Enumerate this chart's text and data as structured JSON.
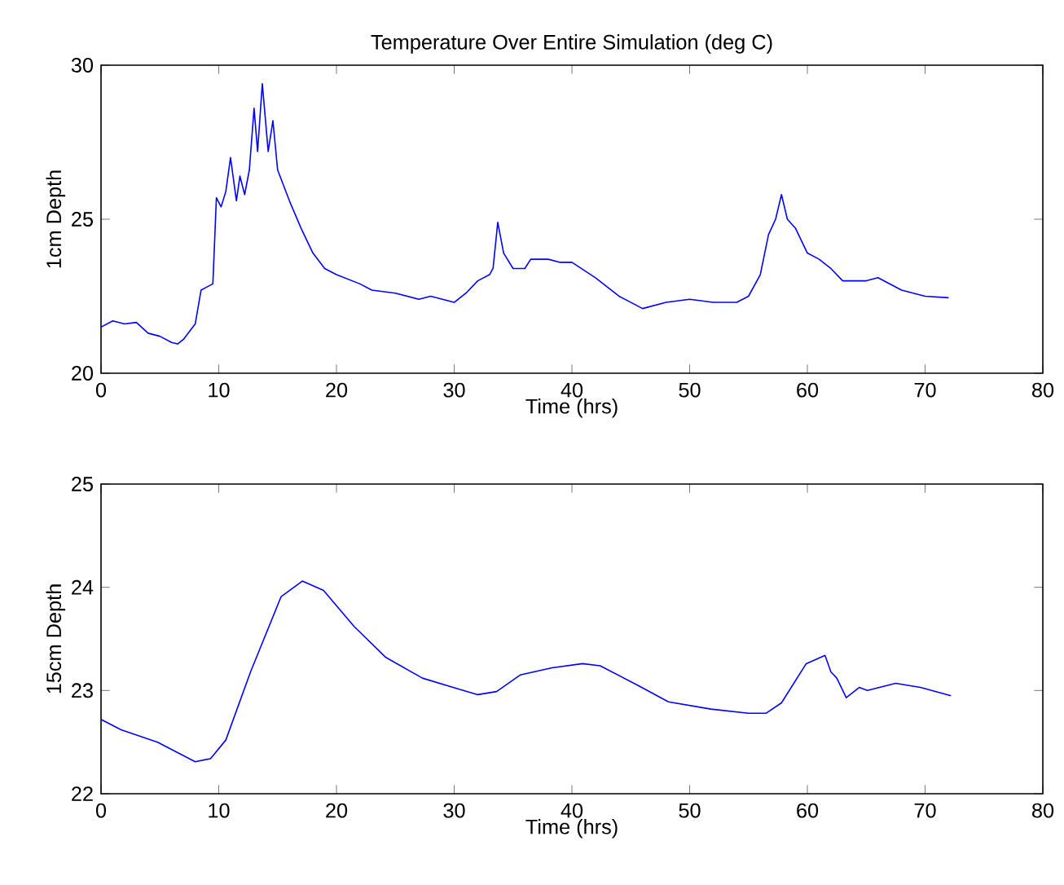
{
  "chart_data": [
    {
      "type": "line",
      "title": "Temperature Over Entire Simulation (deg C)",
      "xlabel": "Time (hrs)",
      "ylabel": "1cm Depth",
      "color": "#0000ff",
      "x": [
        0,
        1,
        2,
        3,
        4,
        5,
        6,
        6.5,
        7,
        8,
        8.5,
        9,
        9.5,
        9.8,
        10.2,
        10.6,
        11,
        11.5,
        11.8,
        12.2,
        12.6,
        13,
        13.3,
        13.7,
        14.2,
        14.6,
        15,
        16,
        17,
        18,
        19,
        20,
        22,
        23,
        25,
        27,
        28,
        30,
        31,
        32,
        33,
        33.3,
        33.7,
        34.2,
        35,
        36,
        36.5,
        38,
        39,
        40,
        42,
        44,
        46,
        48,
        50,
        52,
        54,
        55,
        56,
        56.7,
        57.3,
        57.8,
        58.3,
        59,
        60,
        61,
        62,
        63,
        64,
        65,
        66,
        68,
        70,
        72
      ],
      "values": [
        21.5,
        21.7,
        21.6,
        21.65,
        21.3,
        21.2,
        21.0,
        20.95,
        21.1,
        21.6,
        22.7,
        22.8,
        22.9,
        25.7,
        25.4,
        25.9,
        27.0,
        25.6,
        26.4,
        25.8,
        26.6,
        28.6,
        27.2,
        29.4,
        27.2,
        28.2,
        26.6,
        25.6,
        24.7,
        23.9,
        23.4,
        23.2,
        22.9,
        22.7,
        22.6,
        22.4,
        22.5,
        22.3,
        22.6,
        23.0,
        23.2,
        23.4,
        24.9,
        23.9,
        23.4,
        23.4,
        23.7,
        23.7,
        23.6,
        23.6,
        23.1,
        22.5,
        22.1,
        22.3,
        22.4,
        22.3,
        22.3,
        22.5,
        23.2,
        24.5,
        25.0,
        25.8,
        25.0,
        24.7,
        23.9,
        23.7,
        23.4,
        23.0,
        23.0,
        23.0,
        23.1,
        22.7,
        22.5,
        22.45
      ],
      "xlim": [
        0,
        80
      ],
      "ylim": [
        20,
        30
      ],
      "xticks": [
        0,
        10,
        20,
        30,
        40,
        50,
        60,
        70,
        80
      ],
      "yticks": [
        20,
        25,
        30
      ]
    },
    {
      "type": "line",
      "xlabel": "Time (hrs)",
      "ylabel": "15cm Depth",
      "color": "#0000ff",
      "x": [
        0,
        1.7,
        4.8,
        8.0,
        9.3,
        10.6,
        12.7,
        15.3,
        17.1,
        18.9,
        21.5,
        24.2,
        27.3,
        29.9,
        32.0,
        33.6,
        35.6,
        38.3,
        40.9,
        42.4,
        45.6,
        48.2,
        51.8,
        55.0,
        56.5,
        57.8,
        59.9,
        61.5,
        62.0,
        62.5,
        63.3,
        64.4,
        65.1,
        67.5,
        69.6,
        72.2
      ],
      "values": [
        22.72,
        22.62,
        22.5,
        22.31,
        22.34,
        22.52,
        23.18,
        23.91,
        24.06,
        23.97,
        23.62,
        23.32,
        23.12,
        23.03,
        22.96,
        22.99,
        23.15,
        23.22,
        23.26,
        23.24,
        23.05,
        22.89,
        22.82,
        22.78,
        22.78,
        22.88,
        23.26,
        23.34,
        23.18,
        23.12,
        22.93,
        23.03,
        23.0,
        23.07,
        23.03,
        22.95
      ],
      "xlim": [
        0,
        80
      ],
      "ylim": [
        22,
        25
      ],
      "xticks": [
        0,
        10,
        20,
        30,
        40,
        50,
        60,
        70,
        80
      ],
      "yticks": [
        22,
        23,
        24,
        25
      ]
    }
  ]
}
